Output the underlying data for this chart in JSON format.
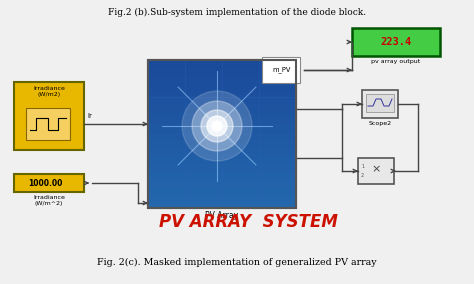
{
  "title_top": "Fig.2 (b).Sub-system implementation of the diode block.",
  "title_bottom": "Fig. 2(c). Masked implementation of generalized PV array",
  "pv_label": "PV Array",
  "system_label": "PV ARRAY  SYSTEM",
  "irradiance_label1": "Irradiance\n(W/m2)",
  "irradiance_label2": "Irradiance\n(W/m^2)",
  "ir_text": "Ir",
  "m_pv_text": "m_PV",
  "value_1000": "1000.00",
  "value_223": "223.4",
  "pv_array_output_text": "pv array output",
  "scope2_text": "Scope2",
  "bg_color": "#f0f0f0",
  "yellow_block_color": "#e8b800",
  "green_display_color": "#44cc44",
  "line_color": "#444444",
  "red_text_color": "#cc1100",
  "pv_array_bg_top": "#1a5aaa",
  "pv_array_bg_bot": "#1a3070"
}
